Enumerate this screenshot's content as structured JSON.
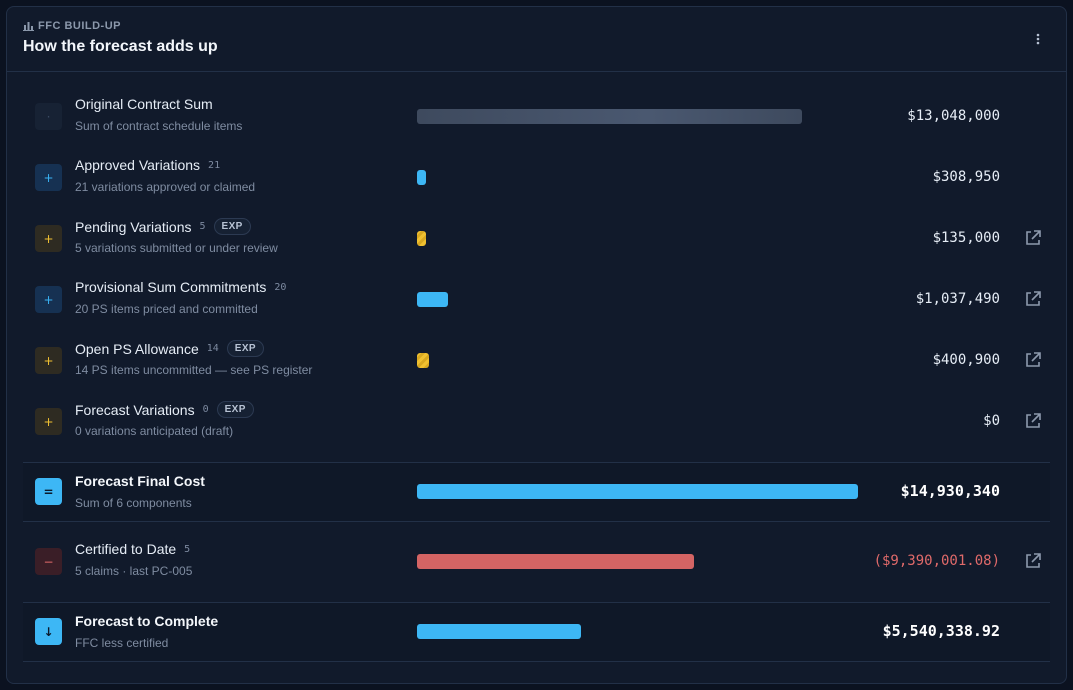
{
  "header": {
    "eyebrow": "FFC BUILD-UP",
    "title": "How the forecast adds up",
    "menu_icon": "more-vertical-icon"
  },
  "colors": {
    "accent_blue": "#3db7f5",
    "amber": "#f0c030",
    "red": "#d46464",
    "neutral_bar": "#4a5870"
  },
  "rows": [
    {
      "icon": "·",
      "label": "Original Contract Sum",
      "count": "",
      "badge": "",
      "sub": "Sum of contract schedule items",
      "amount": "$13,048,000",
      "bar_fraction": 0.873
    },
    {
      "icon": "+",
      "label": "Approved Variations",
      "count": "21",
      "badge": "",
      "sub": "21 variations approved or claimed",
      "amount": "$308,950",
      "bar_fraction": 0.02
    },
    {
      "icon": "+",
      "label": "Pending Variations",
      "count": "5",
      "badge": "EXP",
      "sub": "5 variations submitted or under review",
      "amount": "$135,000",
      "bar_fraction": 0.02
    },
    {
      "icon": "+",
      "label": "Provisional Sum Commitments",
      "count": "20",
      "badge": "",
      "sub": "20 PS items priced and committed",
      "amount": "$1,037,490",
      "bar_fraction": 0.07
    },
    {
      "icon": "+",
      "label": "Open PS Allowance",
      "count": "14",
      "badge": "EXP",
      "sub": "14 PS items uncommitted — see PS register",
      "amount": "$400,900",
      "bar_fraction": 0.027
    },
    {
      "icon": "+",
      "label": "Forecast Variations",
      "count": "0",
      "badge": "EXP",
      "sub": "0 variations anticipated (draft)",
      "amount": "$0",
      "bar_fraction": 0
    }
  ],
  "ffc": {
    "icon": "=",
    "label": "Forecast Final Cost",
    "sub": "Sum of 6 components",
    "amount": "$14,930,340",
    "bar_fraction": 1.0
  },
  "certified": {
    "icon": "−",
    "label": "Certified to Date",
    "count": "5",
    "sub": "5 claims · last PC-005",
    "amount": "($9,390,001.08)",
    "bar_fraction": 0.629
  },
  "ftc": {
    "icon": "↓",
    "label": "Forecast to Complete",
    "sub": "FFC less certified",
    "amount": "$5,540,338.92",
    "bar_fraction": 0.371
  }
}
